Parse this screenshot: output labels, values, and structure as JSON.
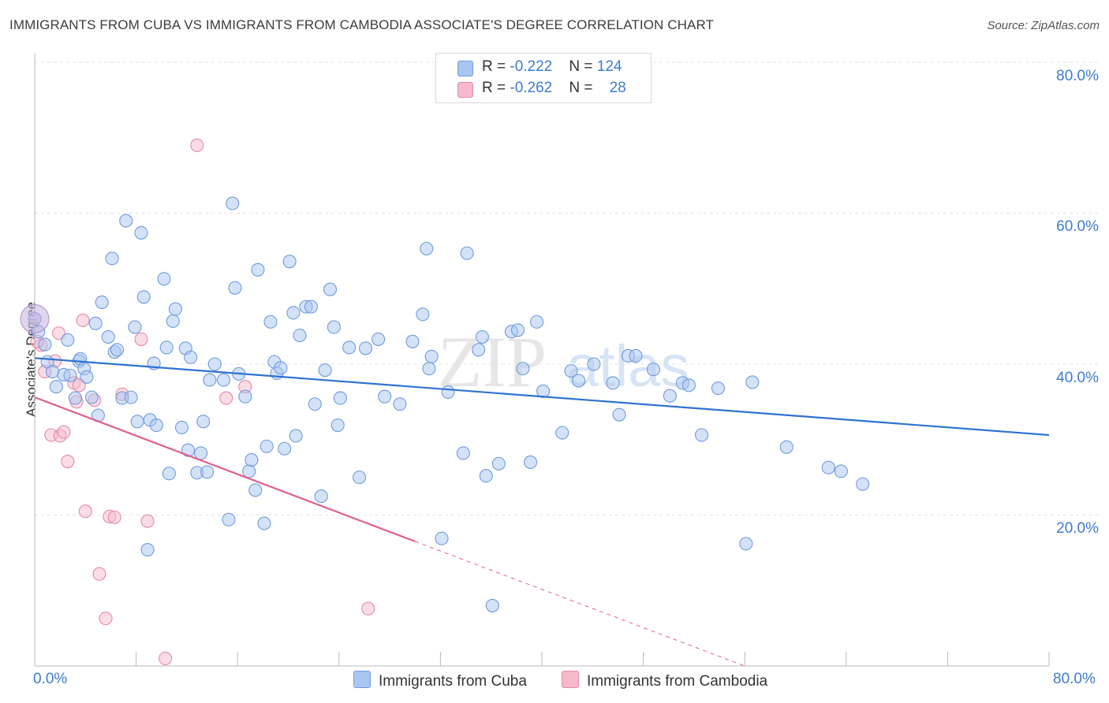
{
  "header": {
    "title": "IMMIGRANTS FROM CUBA VS IMMIGRANTS FROM CAMBODIA ASSOCIATE'S DEGREE CORRELATION CHART",
    "source": "Source: ZipAtlas.com"
  },
  "legend_top": {
    "rows": [
      {
        "label": "R = ",
        "r": "-0.222",
        "n_label": "N = ",
        "n": "124"
      },
      {
        "label": "R = ",
        "r": "-0.262",
        "n_label": "N = ",
        "n": "28"
      }
    ]
  },
  "axes": {
    "x_min_label": "0.0%",
    "x_max_label": "80.0%",
    "y_ticks": [
      "20.0%",
      "40.0%",
      "60.0%",
      "80.0%"
    ],
    "ylabel": "Associate's Degree"
  },
  "bottom_legend": {
    "cuba": "Immigrants from Cuba",
    "cambodia": "Immigrants from Cambodia"
  },
  "colors": {
    "cuba_fill": "#a9c6f0",
    "cuba_stroke": "#6f9be0",
    "cuba_line": "#2f72d0",
    "cambodia_fill": "#f6b9cb",
    "cambodia_stroke": "#e58aa8",
    "cambodia_line": "#e0608e",
    "grid": "#e4e4e4",
    "axis_text": "#3f7bd4"
  },
  "chart_data": {
    "type": "scatter",
    "title": "IMMIGRANTS FROM CUBA VS IMMIGRANTS FROM CAMBODIA ASSOCIATE'S DEGREE CORRELATION CHART",
    "xlabel": "",
    "ylabel": "Associate's Degree",
    "xlim": [
      0,
      80
    ],
    "ylim": [
      0,
      80
    ],
    "grid": true,
    "legend_position": "bottom",
    "series": [
      {
        "name": "Immigrants from Cuba",
        "r": -0.222,
        "n": 124,
        "trend": {
          "x": [
            0,
            80
          ],
          "y": [
            40.8,
            30.6
          ]
        },
        "points": [
          [
            0.3,
            44.3
          ],
          [
            0.8,
            42.6
          ],
          [
            1.0,
            40.3
          ],
          [
            1.4,
            39.0
          ],
          [
            1.7,
            37.0
          ],
          [
            2.3,
            38.6
          ],
          [
            2.8,
            38.5
          ],
          [
            3.2,
            35.5
          ],
          [
            3.5,
            40.4
          ],
          [
            3.6,
            40.7
          ],
          [
            3.9,
            39.4
          ],
          [
            4.1,
            38.3
          ],
          [
            4.5,
            35.6
          ],
          [
            4.8,
            45.4
          ],
          [
            5.0,
            33.2
          ],
          [
            5.3,
            48.2
          ],
          [
            5.8,
            43.6
          ],
          [
            6.1,
            54.0
          ],
          [
            6.3,
            41.6
          ],
          [
            6.5,
            41.9
          ],
          [
            6.9,
            35.5
          ],
          [
            7.2,
            59.0
          ],
          [
            7.6,
            35.6
          ],
          [
            7.9,
            44.9
          ],
          [
            8.1,
            32.4
          ],
          [
            8.4,
            57.4
          ],
          [
            8.6,
            48.9
          ],
          [
            8.9,
            15.4
          ],
          [
            9.1,
            32.6
          ],
          [
            9.6,
            31.9
          ],
          [
            10.2,
            51.3
          ],
          [
            10.4,
            42.2
          ],
          [
            10.6,
            25.5
          ],
          [
            10.9,
            45.7
          ],
          [
            11.1,
            47.3
          ],
          [
            11.6,
            31.6
          ],
          [
            11.9,
            42.1
          ],
          [
            12.1,
            28.6
          ],
          [
            12.3,
            40.9
          ],
          [
            12.8,
            25.6
          ],
          [
            13.1,
            28.2
          ],
          [
            13.3,
            32.4
          ],
          [
            13.6,
            25.7
          ],
          [
            13.8,
            37.9
          ],
          [
            14.9,
            37.9
          ],
          [
            15.3,
            19.4
          ],
          [
            15.6,
            61.3
          ],
          [
            15.8,
            50.1
          ],
          [
            16.1,
            38.7
          ],
          [
            16.6,
            35.7
          ],
          [
            16.9,
            25.8
          ],
          [
            17.1,
            27.3
          ],
          [
            17.4,
            23.3
          ],
          [
            17.6,
            52.5
          ],
          [
            18.1,
            18.9
          ],
          [
            18.3,
            29.1
          ],
          [
            18.6,
            45.6
          ],
          [
            18.9,
            40.3
          ],
          [
            19.1,
            38.8
          ],
          [
            19.4,
            39.5
          ],
          [
            19.7,
            28.8
          ],
          [
            20.1,
            53.6
          ],
          [
            20.4,
            46.8
          ],
          [
            20.6,
            30.5
          ],
          [
            20.9,
            43.8
          ],
          [
            21.4,
            47.6
          ],
          [
            21.8,
            47.6
          ],
          [
            22.1,
            34.7
          ],
          [
            22.6,
            22.5
          ],
          [
            22.9,
            39.2
          ],
          [
            23.3,
            49.9
          ],
          [
            23.6,
            44.9
          ],
          [
            23.9,
            31.9
          ],
          [
            24.1,
            35.5
          ],
          [
            24.8,
            42.2
          ],
          [
            25.6,
            25.0
          ],
          [
            26.1,
            42.1
          ],
          [
            27.1,
            43.3
          ],
          [
            27.6,
            35.7
          ],
          [
            28.8,
            34.7
          ],
          [
            29.8,
            43.0
          ],
          [
            30.6,
            46.6
          ],
          [
            30.9,
            55.3
          ],
          [
            31.1,
            39.4
          ],
          [
            31.3,
            41.0
          ],
          [
            32.1,
            16.9
          ],
          [
            32.6,
            36.3
          ],
          [
            33.8,
            28.2
          ],
          [
            34.1,
            54.7
          ],
          [
            35.0,
            41.9
          ],
          [
            35.3,
            43.6
          ],
          [
            35.6,
            25.2
          ],
          [
            36.1,
            8.0
          ],
          [
            36.6,
            26.8
          ],
          [
            37.6,
            44.3
          ],
          [
            38.1,
            44.5
          ],
          [
            38.5,
            39.4
          ],
          [
            39.1,
            27.0
          ],
          [
            39.6,
            45.6
          ],
          [
            40.1,
            36.4
          ],
          [
            41.6,
            30.9
          ],
          [
            42.3,
            39.1
          ],
          [
            42.9,
            37.8
          ],
          [
            44.1,
            40.0
          ],
          [
            45.6,
            37.5
          ],
          [
            46.1,
            33.3
          ],
          [
            46.8,
            41.1
          ],
          [
            47.4,
            41.1
          ],
          [
            48.8,
            39.3
          ],
          [
            50.1,
            35.8
          ],
          [
            51.1,
            37.5
          ],
          [
            51.6,
            37.2
          ],
          [
            52.6,
            30.6
          ],
          [
            53.9,
            36.8
          ],
          [
            56.1,
            16.2
          ],
          [
            56.6,
            37.6
          ],
          [
            59.3,
            29.0
          ],
          [
            62.6,
            26.3
          ],
          [
            63.6,
            25.8
          ],
          [
            65.3,
            24.1
          ],
          [
            0.0,
            46.0
          ],
          [
            2.6,
            43.2
          ],
          [
            9.4,
            40.1
          ],
          [
            14.2,
            40.0
          ]
        ]
      },
      {
        "name": "Immigrants from Cambodia",
        "r": -0.262,
        "n": 28,
        "trend": {
          "x": [
            0,
            30
          ],
          "y": [
            35.6,
            16.5
          ]
        },
        "trend_dashed": {
          "x": [
            30,
            56
          ],
          "y": [
            16.5,
            0
          ]
        },
        "points": [
          [
            0.0,
            46.0
          ],
          [
            0.5,
            42.5
          ],
          [
            0.8,
            39.0
          ],
          [
            1.3,
            30.6
          ],
          [
            1.6,
            40.4
          ],
          [
            1.9,
            44.1
          ],
          [
            2.0,
            30.5
          ],
          [
            2.3,
            31.0
          ],
          [
            2.6,
            27.1
          ],
          [
            3.1,
            37.5
          ],
          [
            3.5,
            37.2
          ],
          [
            3.8,
            45.8
          ],
          [
            4.0,
            20.5
          ],
          [
            4.7,
            35.2
          ],
          [
            5.1,
            12.2
          ],
          [
            5.6,
            6.3
          ],
          [
            5.9,
            19.8
          ],
          [
            6.3,
            19.7
          ],
          [
            6.9,
            36.0
          ],
          [
            8.4,
            43.3
          ],
          [
            8.9,
            19.2
          ],
          [
            10.3,
            1.0
          ],
          [
            12.8,
            69.0
          ],
          [
            15.1,
            35.5
          ],
          [
            16.6,
            37.0
          ],
          [
            26.3,
            7.6
          ],
          [
            0.2,
            43.0
          ],
          [
            3.3,
            35.0
          ]
        ]
      }
    ]
  }
}
